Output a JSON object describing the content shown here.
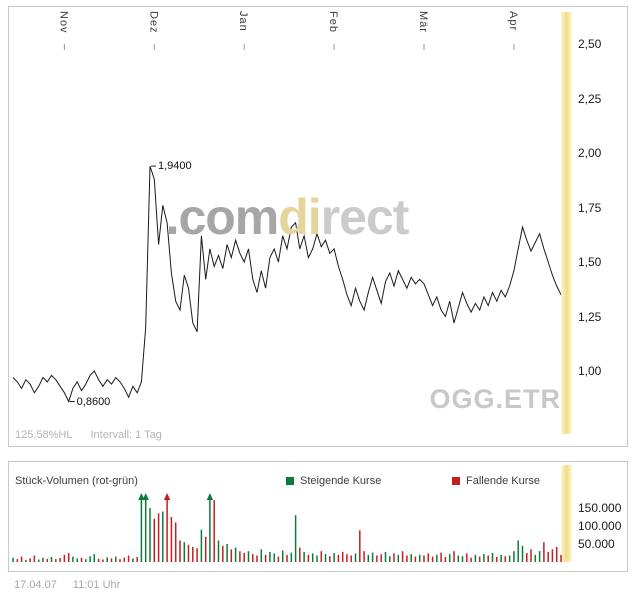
{
  "symbol": "OGG.ETR",
  "watermark": {
    "part1": ".com",
    "part2": "di",
    "part3": "rect"
  },
  "footer": {
    "date": "17.04.07",
    "time": "11:01 Uhr"
  },
  "colors": {
    "up": "#0e7a3a",
    "down": "#c41f1f",
    "line": "#1a1a1a",
    "stripe_mid": "#f2dd82",
    "stripe_edge": "#fdf7d9",
    "watermark_gray": "#a6a6a6",
    "watermark_gold": "#e5d59d",
    "watermark_light": "#cbcbcb",
    "symbol_gray": "#c8c8c8"
  },
  "chart_data": [
    {
      "type": "line",
      "name": "Kurs OGG.ETR (Intervall: 1 Tag)",
      "change_pct_hl": "125,58%HL",
      "interval": "Intervall: 1 Tag",
      "x_months": [
        "Nov",
        "Dez",
        "Jan",
        "Feb",
        "Mär",
        "Apr"
      ],
      "month_start_indices": [
        12,
        33,
        54,
        75,
        96,
        117
      ],
      "ylim": [
        0.75,
        2.65
      ],
      "y_ticks": [
        {
          "label": "2,50",
          "value": 2.5
        },
        {
          "label": "2,25",
          "value": 2.25
        },
        {
          "label": "2,00",
          "value": 2.0
        },
        {
          "label": "1,75",
          "value": 1.75
        },
        {
          "label": "1,50",
          "value": 1.5
        },
        {
          "label": "1,25",
          "value": 1.25
        },
        {
          "label": "1,00",
          "value": 1.0
        }
      ],
      "annotations": [
        {
          "text": "1,9400",
          "index": 32,
          "value": 1.94
        },
        {
          "text": "0,8600",
          "index": 13,
          "value": 0.86
        }
      ],
      "values": [
        0.97,
        0.95,
        0.92,
        0.96,
        0.94,
        0.9,
        0.93,
        0.97,
        0.95,
        0.98,
        0.96,
        0.93,
        0.9,
        0.86,
        0.92,
        0.95,
        0.91,
        0.94,
        0.98,
        1.0,
        0.96,
        0.93,
        0.96,
        0.94,
        0.97,
        0.95,
        0.92,
        0.88,
        0.93,
        0.9,
        0.95,
        1.2,
        1.94,
        1.88,
        1.58,
        1.76,
        1.68,
        1.45,
        1.32,
        1.28,
        1.44,
        1.38,
        1.22,
        1.18,
        1.62,
        1.42,
        1.56,
        1.48,
        1.53,
        1.47,
        1.58,
        1.52,
        1.6,
        1.54,
        1.5,
        1.56,
        1.42,
        1.36,
        1.46,
        1.38,
        1.52,
        1.56,
        1.5,
        1.62,
        1.56,
        1.66,
        1.68,
        1.56,
        1.62,
        1.52,
        1.56,
        1.63,
        1.57,
        1.6,
        1.54,
        1.56,
        1.48,
        1.42,
        1.35,
        1.3,
        1.38,
        1.32,
        1.28,
        1.36,
        1.43,
        1.37,
        1.31,
        1.41,
        1.45,
        1.39,
        1.46,
        1.42,
        1.38,
        1.43,
        1.4,
        1.42,
        1.4,
        1.35,
        1.3,
        1.34,
        1.28,
        1.25,
        1.32,
        1.22,
        1.29,
        1.36,
        1.31,
        1.27,
        1.31,
        1.28,
        1.34,
        1.3,
        1.36,
        1.32,
        1.37,
        1.34,
        1.39,
        1.46,
        1.56,
        1.66,
        1.6,
        1.55,
        1.59,
        1.63,
        1.56,
        1.5,
        1.44,
        1.39,
        1.35
      ]
    },
    {
      "type": "bar",
      "title": "Stück-Volumen (rot-grün)",
      "legend": [
        {
          "label": "Steigende Kurse",
          "color_key": "up"
        },
        {
          "label": "Fallende Kurse",
          "color_key": "down"
        }
      ],
      "y_ticks": [
        {
          "label": "150.000",
          "value": 150000
        },
        {
          "label": "100.000",
          "value": 100000
        },
        {
          "label": "50.000",
          "value": 50000
        }
      ],
      "color_rule": "green if price rose vs previous day, red if it fell",
      "values": [
        12000,
        8000,
        15000,
        6000,
        10000,
        18000,
        7000,
        12000,
        9000,
        14000,
        8000,
        11000,
        20000,
        25000,
        15000,
        10000,
        12000,
        8000,
        16000,
        22000,
        9000,
        7000,
        13000,
        10000,
        15000,
        8000,
        12000,
        18000,
        10000,
        14000,
        175000,
        185000,
        150000,
        120000,
        135000,
        140000,
        180000,
        125000,
        110000,
        60000,
        55000,
        48000,
        42000,
        38000,
        90000,
        70000,
        178000,
        172000,
        60000,
        45000,
        50000,
        35000,
        40000,
        30000,
        25000,
        30000,
        22000,
        18000,
        35000,
        20000,
        28000,
        24000,
        15000,
        32000,
        20000,
        26000,
        130000,
        40000,
        28000,
        20000,
        24000,
        18000,
        30000,
        22000,
        16000,
        25000,
        20000,
        28000,
        22000,
        18000,
        24000,
        88000,
        30000,
        20000,
        26000,
        18000,
        22000,
        28000,
        16000,
        24000,
        20000,
        30000,
        18000,
        22000,
        15000,
        20000,
        18000,
        24000,
        15000,
        20000,
        26000,
        14000,
        22000,
        30000,
        18000,
        16000,
        24000,
        12000,
        20000,
        15000,
        22000,
        18000,
        25000,
        14000,
        20000,
        16000,
        18000,
        30000,
        60000,
        45000,
        25000,
        35000,
        20000,
        30000,
        55000,
        28000,
        35000,
        42000,
        20000
      ]
    }
  ]
}
